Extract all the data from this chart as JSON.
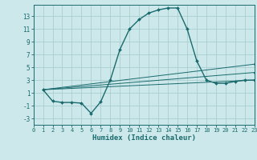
{
  "xlabel": "Humidex (Indice chaleur)",
  "background_color": "#cce8ea",
  "grid_color": "#aacfd2",
  "line_color": "#1a6b6e",
  "series": [
    {
      "x": [
        1,
        2,
        3,
        4,
        5,
        6,
        7,
        8,
        9,
        10,
        11,
        12,
        13,
        14,
        15,
        16,
        17,
        18,
        19,
        20,
        21,
        22,
        23
      ],
      "y": [
        1.5,
        -0.3,
        -0.5,
        -0.5,
        -0.6,
        -2.2,
        -0.4,
        3.0,
        7.8,
        11.0,
        12.5,
        13.5,
        14.0,
        14.3,
        14.3,
        11.0,
        6.0,
        3.0,
        2.5,
        2.5,
        2.8,
        3.0,
        3.0
      ]
    },
    {
      "x": [
        1,
        23
      ],
      "y": [
        1.5,
        5.5
      ]
    },
    {
      "x": [
        1,
        23
      ],
      "y": [
        1.5,
        4.2
      ]
    },
    {
      "x": [
        1,
        23
      ],
      "y": [
        1.5,
        3.0
      ]
    }
  ],
  "xlim": [
    0,
    23
  ],
  "ylim": [
    -4,
    14.8
  ],
  "yticks": [
    -3,
    -1,
    1,
    3,
    5,
    7,
    9,
    11,
    13
  ],
  "xticks": [
    0,
    1,
    2,
    3,
    4,
    5,
    6,
    7,
    8,
    9,
    10,
    11,
    12,
    13,
    14,
    15,
    16,
    17,
    18,
    19,
    20,
    21,
    22,
    23
  ]
}
